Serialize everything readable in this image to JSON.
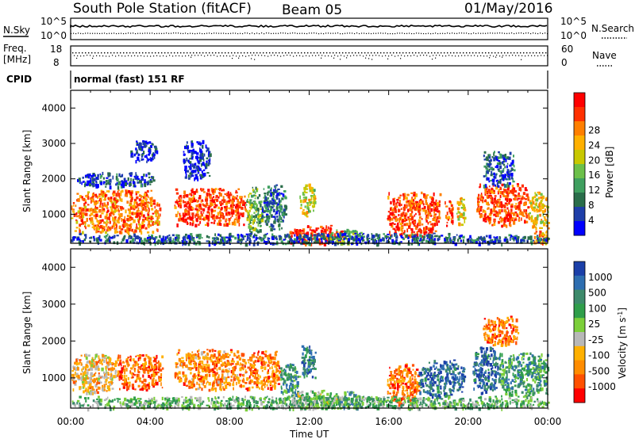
{
  "header": {
    "title": "South Pole Station (fitACF)",
    "beam": "Beam 05",
    "date": "01/May/2016"
  },
  "panels": {
    "nsky": {
      "left_label": "N.Sky",
      "right_label": "N.Search",
      "left_ticks": [
        "10^5",
        "10^0"
      ],
      "right_ticks": [
        "10^5",
        "10^0"
      ]
    },
    "freq": {
      "left_label_1": "Freq.",
      "left_label_2": "[MHz]",
      "right_label": "Nave",
      "left_ticks": [
        "18",
        "8"
      ],
      "right_ticks": [
        "60",
        "0"
      ]
    },
    "cpid": {
      "label": "CPID",
      "text": "normal (fast) 151 RF"
    }
  },
  "chart_data": [
    {
      "type": "heatmap",
      "name": "power",
      "ylabel": "Slant Range [km]",
      "xlabel": "",
      "x_ticks": [
        "00:00",
        "04:00",
        "08:00",
        "12:00",
        "16:00",
        "20:00",
        "00:00"
      ],
      "y_ticks": [
        "1000",
        "2000",
        "3000",
        "4000"
      ],
      "xlim_hours": [
        0,
        24
      ],
      "ylim_km": [
        180,
        4500
      ],
      "colorbar": {
        "label": "Power [dB]",
        "ticks": [
          "4",
          "8",
          "12",
          "16",
          "20",
          "24",
          "28"
        ],
        "colors": [
          "#0000ff",
          "#1e3ea8",
          "#2a6d4a",
          "#3f9f5f",
          "#6cc04a",
          "#c8c800",
          "#ffb000",
          "#ff7f00",
          "#ff3000",
          "#ff0000"
        ]
      },
      "blobs": [
        {
          "t0": 0.0,
          "t1": 4.5,
          "r0": 500,
          "r1": 1700,
          "level": 0.75
        },
        {
          "t0": 0.3,
          "t1": 4.2,
          "r0": 1800,
          "r1": 2200,
          "level": 0.15
        },
        {
          "t0": 3.0,
          "t1": 4.3,
          "r0": 2500,
          "r1": 3100,
          "level": 0.1
        },
        {
          "t0": 5.6,
          "t1": 7.0,
          "r0": 2000,
          "r1": 3100,
          "level": 0.1
        },
        {
          "t0": 5.2,
          "t1": 8.8,
          "r0": 700,
          "r1": 1750,
          "level": 0.85
        },
        {
          "t0": 8.8,
          "t1": 9.6,
          "r0": 500,
          "r1": 1800,
          "level": 0.4
        },
        {
          "t0": 9.6,
          "t1": 10.8,
          "r0": 600,
          "r1": 1850,
          "level": 0.25
        },
        {
          "t0": 11.5,
          "t1": 12.3,
          "r0": 950,
          "r1": 1900,
          "level": 0.55
        },
        {
          "t0": 11.0,
          "t1": 13.7,
          "r0": 180,
          "r1": 700,
          "level": 0.9
        },
        {
          "t0": 13.0,
          "t1": 14.6,
          "r0": 180,
          "r1": 600,
          "level": 0.4
        },
        {
          "t0": 15.9,
          "t1": 18.6,
          "r0": 400,
          "r1": 1650,
          "level": 0.85
        },
        {
          "t0": 18.8,
          "t1": 19.2,
          "r0": 700,
          "r1": 1400,
          "level": 0.8
        },
        {
          "t0": 19.4,
          "t1": 19.8,
          "r0": 700,
          "r1": 1500,
          "level": 0.6
        },
        {
          "t0": 20.4,
          "t1": 23.0,
          "r0": 700,
          "r1": 1900,
          "level": 0.85
        },
        {
          "t0": 23.0,
          "t1": 24.0,
          "r0": 600,
          "r1": 1650,
          "level": 0.6
        },
        {
          "t0": 20.7,
          "t1": 22.3,
          "r0": 1800,
          "r1": 2800,
          "level": 0.2
        },
        {
          "t0": 23.2,
          "t1": 24.0,
          "r0": 180,
          "r1": 550,
          "level": 0.7
        },
        {
          "t0": 0.0,
          "t1": 24.0,
          "r0": 180,
          "r1": 480,
          "level": 0.2
        }
      ]
    },
    {
      "type": "heatmap",
      "name": "velocity",
      "ylabel": "Slant Range [km]",
      "xlabel": "Time UT",
      "x_ticks": [
        "00:00",
        "04:00",
        "08:00",
        "12:00",
        "16:00",
        "20:00",
        "00:00"
      ],
      "y_ticks": [
        "1000",
        "2000",
        "3000",
        "4000"
      ],
      "xlim_hours": [
        0,
        24
      ],
      "ylim_km": [
        180,
        4500
      ],
      "colorbar": {
        "label": "Velocity [m s^-1]",
        "ticks": [
          "1000",
          "500",
          "100",
          "25",
          "-25",
          "-100",
          "-500",
          "-1000"
        ],
        "colors": [
          "#1b3fa8",
          "#2e6eb0",
          "#3d8a6b",
          "#2f9e4a",
          "#7ccf3a",
          "#b8b8b8",
          "#ffb000",
          "#ff8c00",
          "#ff5000",
          "#ff0000"
        ]
      },
      "blobs": [
        {
          "t0": 0.0,
          "t1": 2.3,
          "r0": 600,
          "r1": 1700,
          "level": 0.65
        },
        {
          "t0": 2.3,
          "t1": 4.6,
          "r0": 700,
          "r1": 1650,
          "level": 0.8
        },
        {
          "t0": 5.2,
          "t1": 8.8,
          "r0": 700,
          "r1": 1800,
          "level": 0.75
        },
        {
          "t0": 8.8,
          "t1": 10.5,
          "r0": 700,
          "r1": 1750,
          "level": 0.78
        },
        {
          "t0": 10.5,
          "t1": 11.5,
          "r0": 500,
          "r1": 1400,
          "level": 0.3
        },
        {
          "t0": 11.6,
          "t1": 12.3,
          "r0": 1000,
          "r1": 1900,
          "level": 0.2
        },
        {
          "t0": 11.0,
          "t1": 13.5,
          "r0": 180,
          "r1": 700,
          "level": 0.45
        },
        {
          "t0": 13.5,
          "t1": 14.5,
          "r0": 180,
          "r1": 650,
          "level": 0.3
        },
        {
          "t0": 15.9,
          "t1": 17.5,
          "r0": 300,
          "r1": 1400,
          "level": 0.8
        },
        {
          "t0": 17.5,
          "t1": 19.8,
          "r0": 500,
          "r1": 1500,
          "level": 0.15
        },
        {
          "t0": 20.2,
          "t1": 21.5,
          "r0": 600,
          "r1": 1900,
          "level": 0.15
        },
        {
          "t0": 21.5,
          "t1": 24.0,
          "r0": 500,
          "r1": 1700,
          "level": 0.3
        },
        {
          "t0": 20.7,
          "t1": 22.5,
          "r0": 1900,
          "r1": 2700,
          "level": 0.8
        },
        {
          "t0": 0.0,
          "t1": 24.0,
          "r0": 180,
          "r1": 520,
          "level": 0.4
        }
      ]
    }
  ]
}
